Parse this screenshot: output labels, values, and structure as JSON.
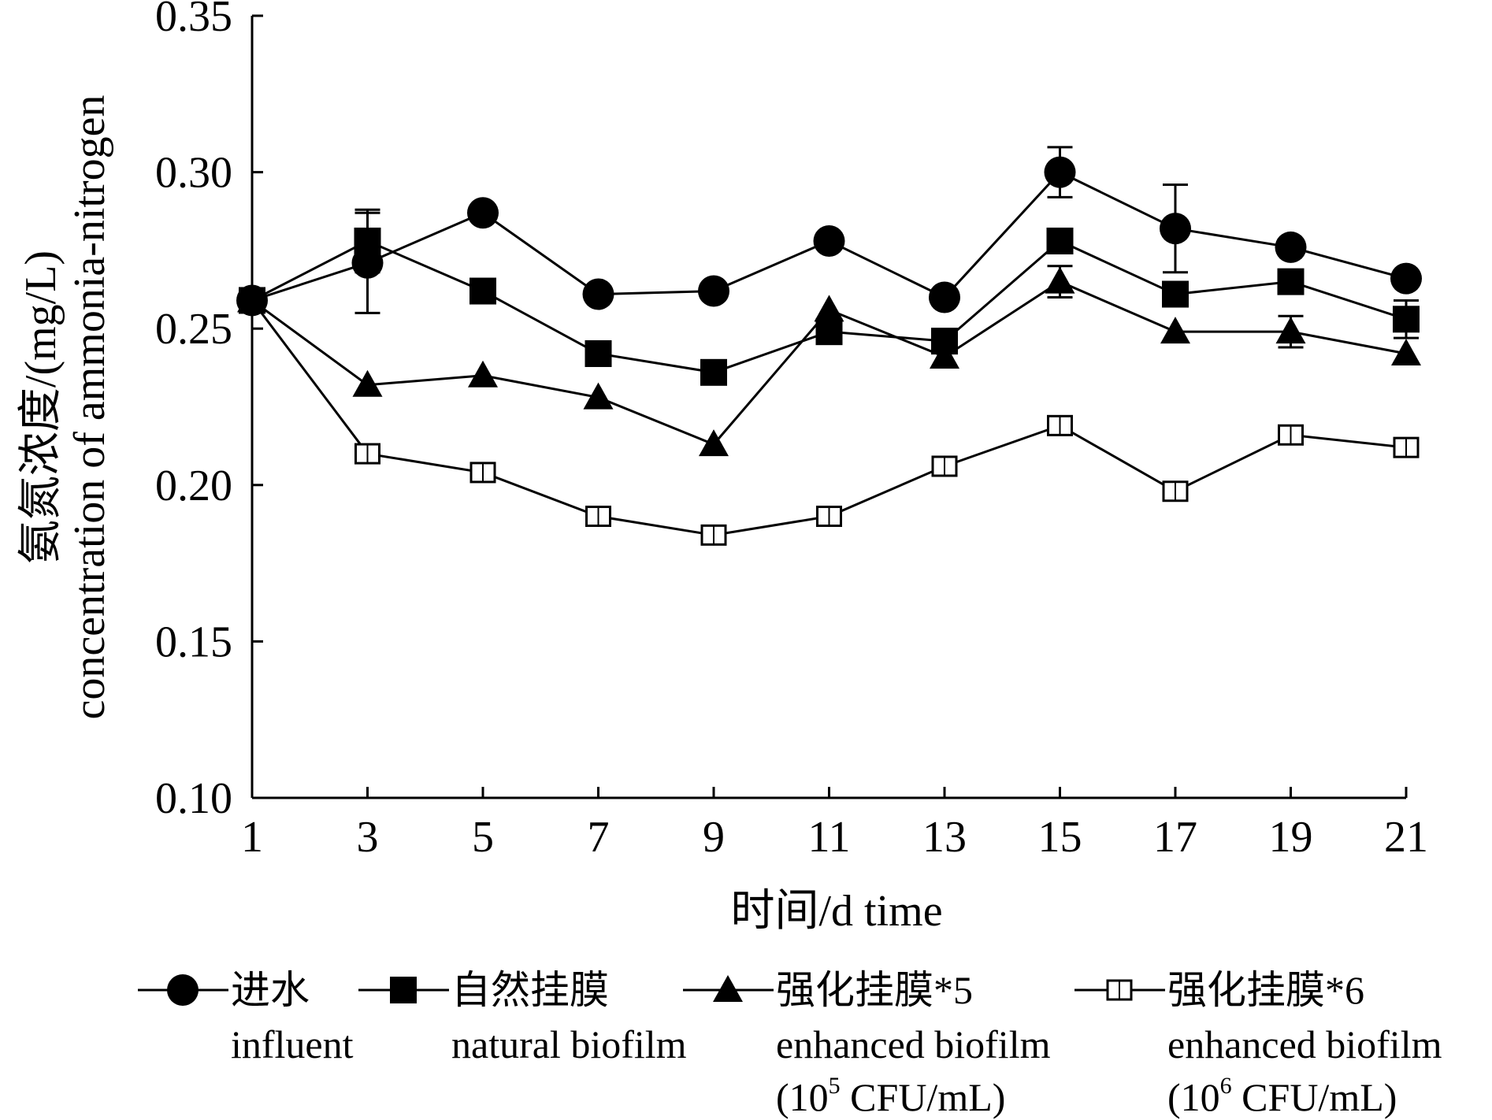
{
  "chart_data": {
    "type": "line",
    "xlabel": "时间/d time",
    "ylabel_line1": "氨氮浓度/(mg/L)",
    "ylabel_line2": "concentration of ammonia-nitrogen",
    "x": [
      1,
      3,
      5,
      7,
      9,
      11,
      13,
      15,
      17,
      19,
      21
    ],
    "x_tick_labels": [
      "1",
      "3",
      "5",
      "7",
      "9",
      "11",
      "13",
      "15",
      "17",
      "19",
      "21"
    ],
    "xlim": [
      1,
      21
    ],
    "ylim": [
      0.1,
      0.35
    ],
    "y_ticks": [
      0.1,
      0.15,
      0.2,
      0.25,
      0.3,
      0.35
    ],
    "y_tick_labels": [
      "0.10",
      "0.15",
      "0.20",
      "0.25",
      "0.30",
      "0.35"
    ],
    "grid": false,
    "legend_placement": "bottom",
    "series": [
      {
        "name": "进水",
        "name_en": "influent",
        "marker": "circle-filled",
        "values": [
          0.259,
          0.271,
          0.287,
          0.261,
          0.262,
          0.278,
          0.26,
          0.3,
          0.282,
          0.276,
          0.266
        ],
        "errors": [
          0.002,
          0.016,
          0.002,
          0.002,
          0.002,
          0.002,
          0.002,
          0.008,
          0.014,
          0.002,
          0.002
        ]
      },
      {
        "name": "自然挂膜",
        "name_en": "natural biofilm",
        "marker": "square-filled",
        "values": [
          0.259,
          0.278,
          0.262,
          0.242,
          0.236,
          0.249,
          0.246,
          0.278,
          0.261,
          0.265,
          0.253
        ],
        "errors": [
          0.002,
          0.01,
          0.002,
          0.002,
          0.002,
          0.002,
          0.002,
          0.002,
          0.002,
          0.002,
          0.006
        ]
      },
      {
        "name": "强化挂膜*5",
        "name_en": "enhanced biofilm",
        "conc_prefix": "(10",
        "conc_sup": "5",
        "conc_suffix": " CFU/mL)",
        "marker": "triangle-filled",
        "values": [
          0.259,
          0.232,
          0.235,
          0.228,
          0.213,
          0.256,
          0.241,
          0.265,
          0.249,
          0.249,
          0.242
        ],
        "errors": [
          0.002,
          0.003,
          0.003,
          0.003,
          0.002,
          0.003,
          0.002,
          0.005,
          0.002,
          0.005,
          0.002
        ]
      },
      {
        "name": "强化挂膜*6",
        "name_en": "enhanced biofilm",
        "conc_prefix": "(10",
        "conc_sup": "6",
        "conc_suffix": " CFU/mL)",
        "marker": "square-open",
        "values": [
          0.259,
          0.21,
          0.204,
          0.19,
          0.184,
          0.19,
          0.206,
          0.219,
          0.198,
          0.216,
          0.212
        ],
        "errors": [
          0.002,
          0.002,
          0.002,
          0.002,
          0.002,
          0.002,
          0.002,
          0.002,
          0.002,
          0.002,
          0.002
        ]
      }
    ]
  }
}
